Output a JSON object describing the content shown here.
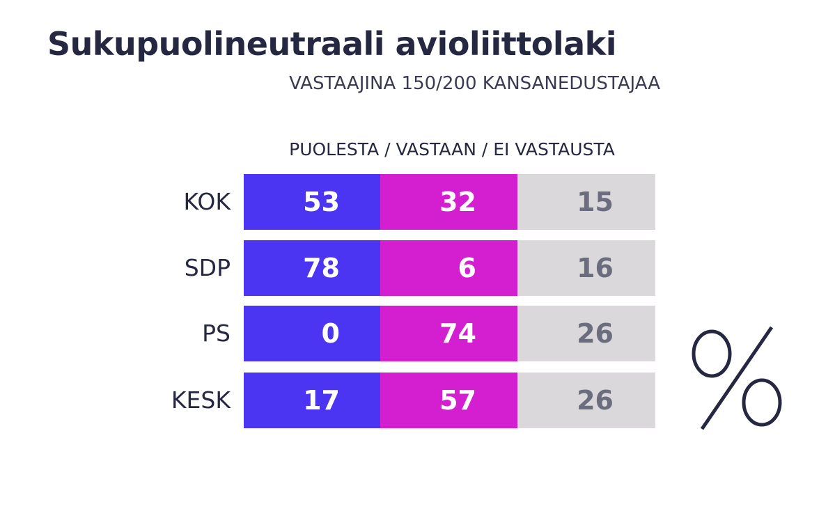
{
  "title": "Sukupuolineutraali avioliittolaki",
  "subtitle": "VASTAAJINA 150/200 KANSANEDUSTAJAA",
  "column_header": "PUOLESTA / VASTAAN / EI VASTAUSTA",
  "unit_symbol": "%",
  "colors": {
    "puolesta": "#4b35f3",
    "vastaan": "#d31fcf",
    "ei_vastausta": "#dad8da",
    "text_dark": "#262842",
    "text_grey": "#6b6c7e"
  },
  "chart_data": {
    "type": "table",
    "title": "Sukupuolineutraali avioliittolaki",
    "subtitle": "VASTAAJINA 150/200 KANSANEDUSTAJAA",
    "unit": "%",
    "columns": [
      "PUOLESTA",
      "VASTAAN",
      "EI VASTAUSTA"
    ],
    "categories": [
      "KOK",
      "SDP",
      "PS",
      "KESK"
    ],
    "series": [
      {
        "name": "PUOLESTA",
        "values": [
          53,
          78,
          0,
          17
        ]
      },
      {
        "name": "VASTAAN",
        "values": [
          32,
          6,
          74,
          57
        ]
      },
      {
        "name": "EI VASTAUSTA",
        "values": [
          15,
          16,
          26,
          26
        ]
      }
    ]
  }
}
